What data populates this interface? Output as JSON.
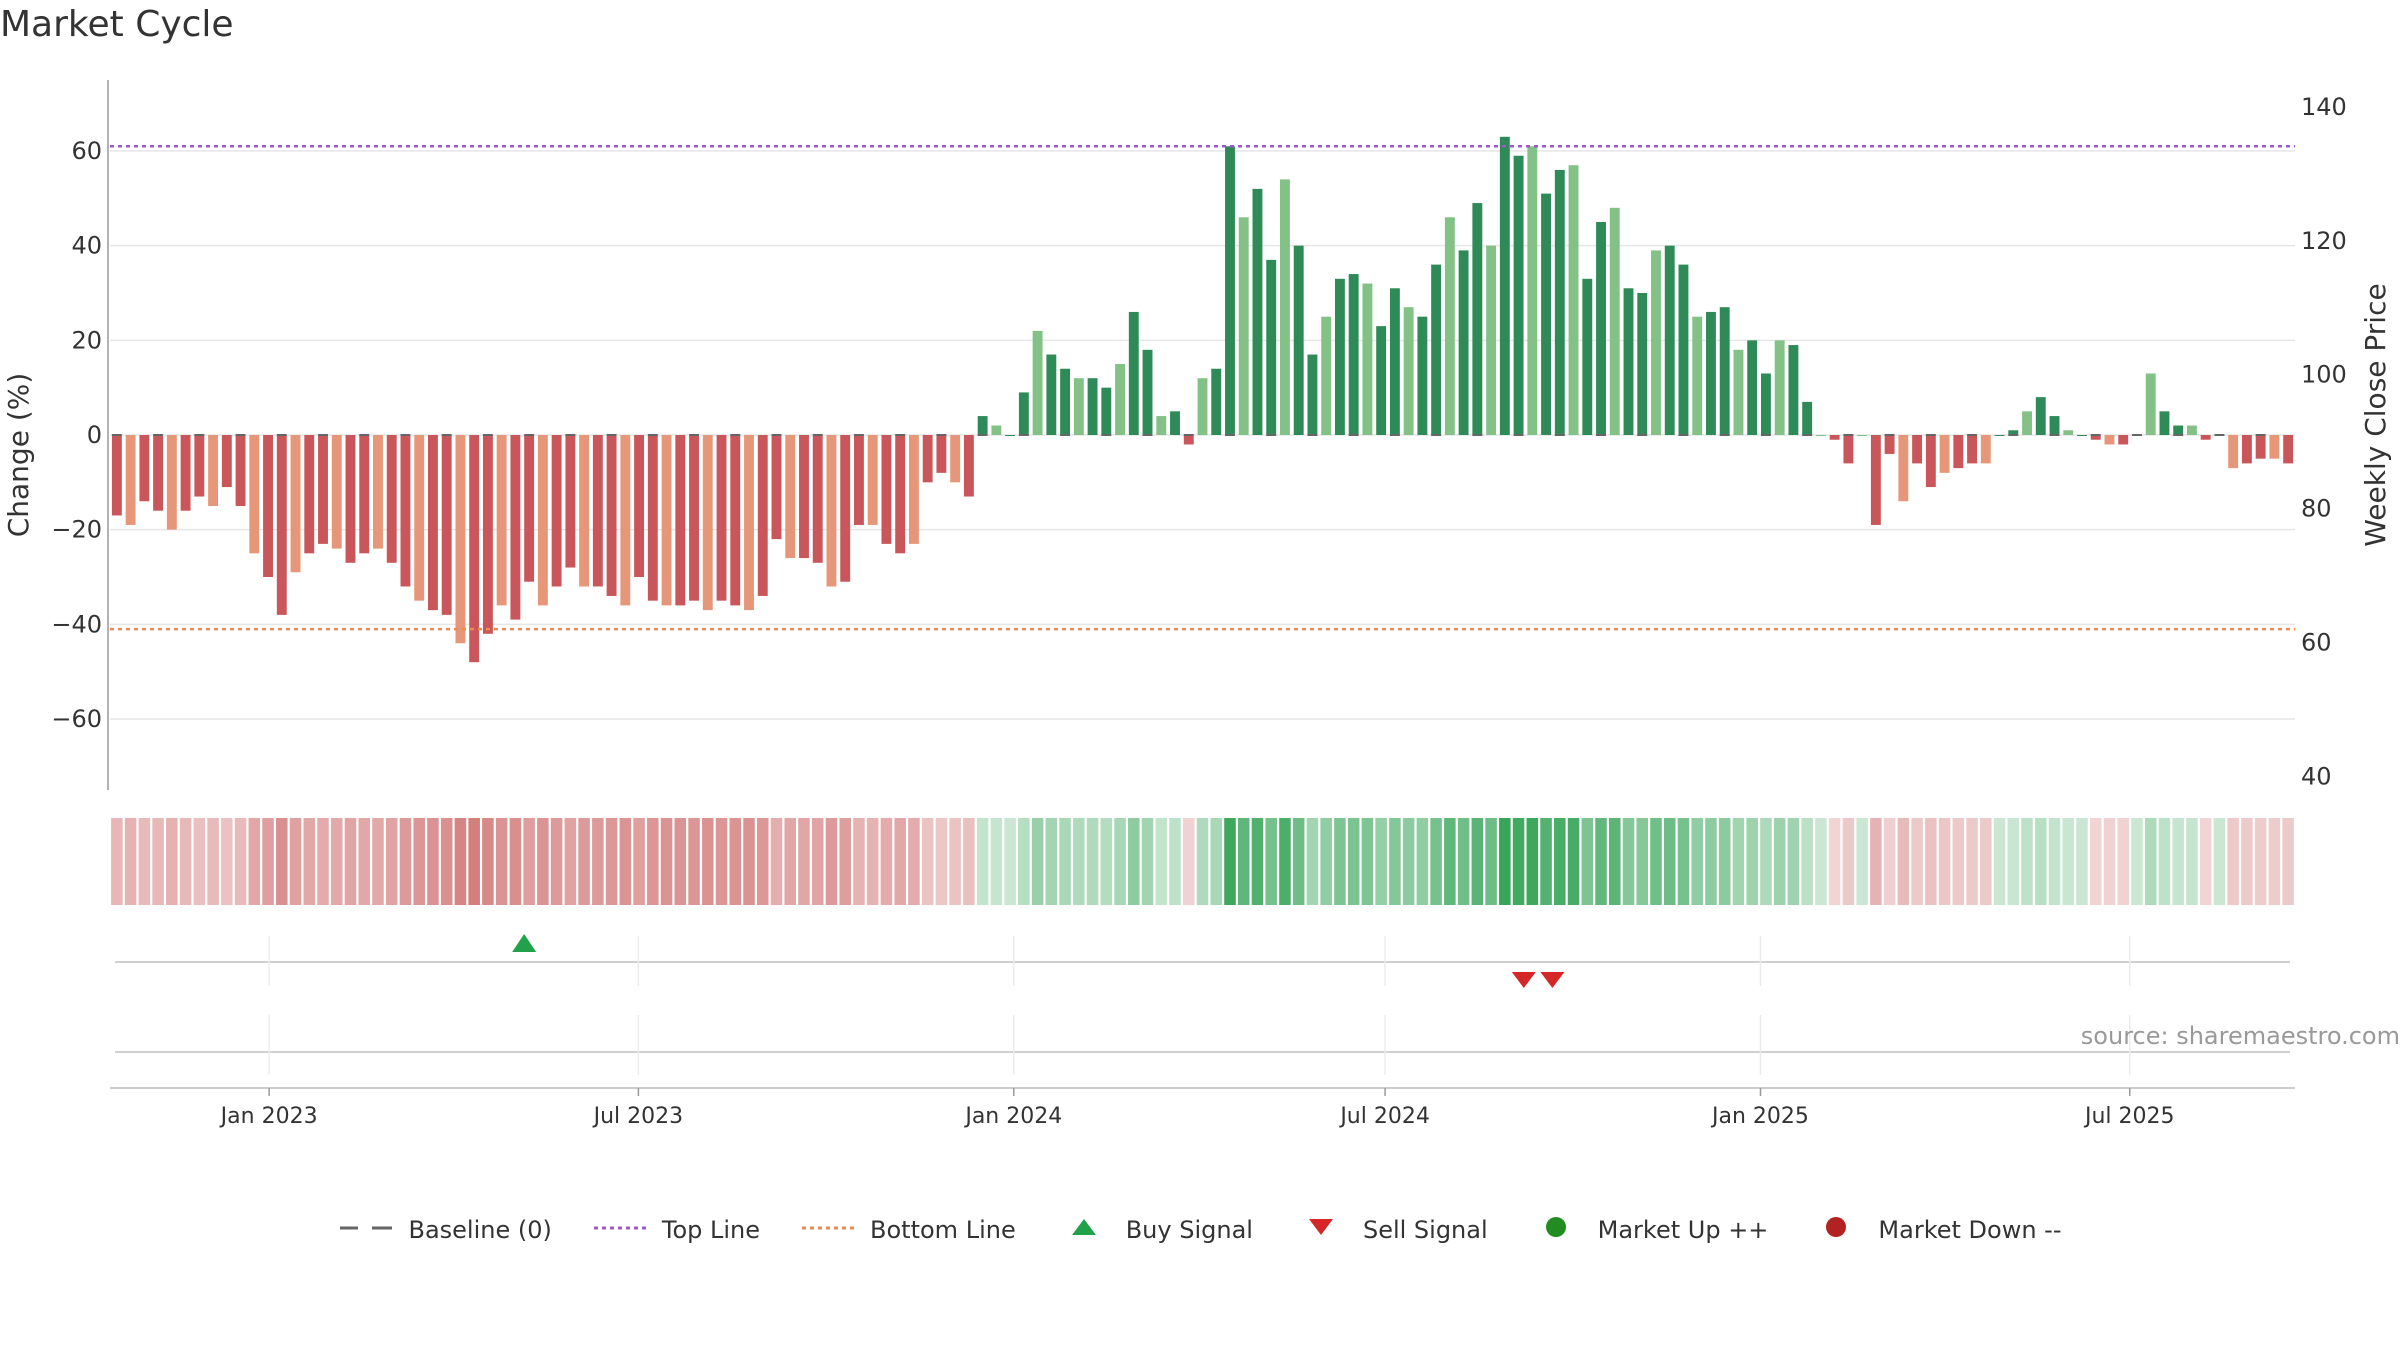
{
  "title": "Market Cycle",
  "source": "source: sharemaestro.com",
  "colors": {
    "neg_dark": "#c9565a",
    "neg_light": "#e6977a",
    "pos_dark": "#2e8b57",
    "pos_light": "#83c187",
    "top_line": "#9b59d0",
    "bottom_line": "#ef8a4d",
    "buy": "#22a14b",
    "sell": "#d62728",
    "market_up": "#228b22",
    "market_down": "#b22222",
    "baseline": "#666666"
  },
  "legend": [
    {
      "label": "Baseline (0)",
      "symbol": "dash",
      "color": "#666666"
    },
    {
      "label": "Top Line",
      "symbol": "dotted",
      "color": "#9b59d0"
    },
    {
      "label": "Bottom Line",
      "symbol": "dotted",
      "color": "#ef8a4d"
    },
    {
      "label": "Buy Signal",
      "symbol": "triangle-up",
      "color": "#22a14b"
    },
    {
      "label": "Sell Signal",
      "symbol": "triangle-down",
      "color": "#d62728"
    },
    {
      "label": "Market Up ++",
      "symbol": "circle",
      "color": "#228b22"
    },
    {
      "label": "Market Down --",
      "symbol": "circle",
      "color": "#b22222"
    }
  ],
  "chart_data": {
    "type": "bar",
    "title": "Market Cycle",
    "ylabel": "Change (%)",
    "y2label": "Weekly Close Price",
    "ylim": [
      -75,
      75
    ],
    "y2lim": [
      38,
      144
    ],
    "yticks": [
      -60,
      -40,
      -20,
      0,
      20,
      40,
      60
    ],
    "y2ticks": [
      40,
      60,
      80,
      100,
      120,
      140
    ],
    "x_start": "2022-10-15",
    "x_end": "2025-09-20",
    "x_tick_labels": [
      "Jan 2023",
      "Jul 2023",
      "Jan 2024",
      "Jul 2024",
      "Jan 2025",
      "Jul 2025"
    ],
    "x_tick_dates": [
      "2023-01-01",
      "2023-07-01",
      "2024-01-01",
      "2024-07-01",
      "2025-01-01",
      "2025-07-01"
    ],
    "top_line": 61,
    "bottom_line": -41,
    "baseline": 0,
    "series": [
      {
        "values": [
          -17,
          -19,
          -14,
          -16,
          -20,
          -16,
          -13,
          -15,
          -11,
          -15,
          -25,
          -30,
          -38,
          -29,
          -25,
          -23,
          -24,
          -27,
          -25,
          -24,
          -27,
          -32,
          -35,
          -37,
          -38,
          -44,
          -48,
          -42,
          -36,
          -39,
          -31,
          -36,
          -32,
          -28,
          -32,
          -32,
          -34,
          -36,
          -30,
          -35,
          -36,
          -36,
          -35,
          -37,
          -35,
          -36,
          -37,
          -34,
          -22,
          -26,
          -26,
          -27,
          -32,
          -31,
          -19,
          -19,
          -23,
          -25,
          -23,
          -10,
          -8,
          -10,
          -13,
          4,
          2,
          0,
          9,
          22,
          17,
          14,
          12,
          12,
          10,
          15,
          26,
          18,
          4,
          5,
          -2,
          12,
          14,
          61,
          46,
          52,
          37,
          54,
          40,
          17,
          25,
          33,
          34,
          32,
          23,
          31,
          27,
          25,
          36,
          46,
          39,
          49,
          40,
          63,
          59,
          61,
          51,
          56,
          57,
          33,
          45,
          48,
          31,
          30,
          39,
          40,
          36,
          25,
          26,
          27,
          18,
          20,
          13,
          20,
          19,
          7,
          0,
          -1,
          -6,
          0,
          -19,
          -4,
          -14,
          -6,
          -11,
          -8,
          -7,
          -6,
          -6,
          0,
          1,
          5,
          8,
          4,
          1,
          0,
          -1,
          -2,
          -2,
          0,
          13,
          5,
          2,
          2,
          -1,
          0,
          -7,
          -6,
          -5,
          -5,
          -6
        ]
      }
    ],
    "buy_signals": [
      "2023-05-06"
    ],
    "sell_signals": [
      "2024-09-07",
      "2024-09-21"
    ]
  }
}
